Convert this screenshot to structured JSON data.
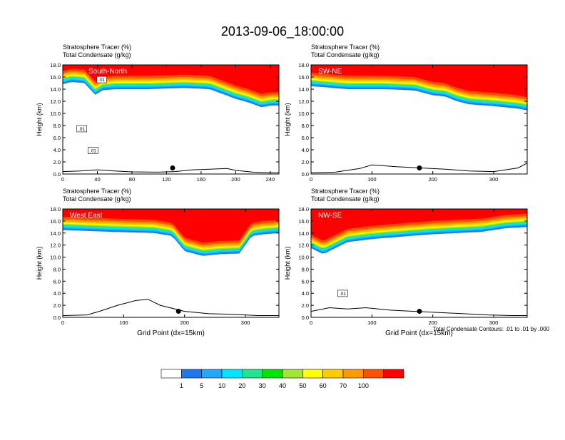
{
  "title": "2013-09-06_18:00:00",
  "colors": {
    "levels": [
      "#ffffff",
      "#1e78f0",
      "#1ea8ff",
      "#00e6ff",
      "#1ee68c",
      "#00e600",
      "#a0e632",
      "#ffff00",
      "#ffcc00",
      "#ff9900",
      "#ff5000",
      "#ff0000"
    ],
    "contour": "#000000"
  },
  "colorbar": {
    "labels": [
      "1",
      "5",
      "10",
      "20",
      "30",
      "40",
      "50",
      "60",
      "70",
      "100"
    ]
  },
  "contour_note": "Total Condensate Contours: .01 to .01 by .000",
  "chart_data": [
    {
      "type": "heatmap",
      "name": "South-North",
      "label": "South-North",
      "header1": "Stratosphere Tracer   (%)",
      "header2": "Total Condensate   (g/kg)",
      "ylabel": "Height (km)",
      "xlabel": "",
      "xlim": [
        0,
        250
      ],
      "ylim": [
        0,
        18
      ],
      "xticks": [
        0,
        40,
        80,
        120,
        160,
        200,
        240
      ],
      "yticks": [
        0,
        2,
        4,
        6,
        8,
        10,
        12,
        14,
        16,
        18
      ],
      "contour_labels": [
        {
          "text": ".01",
          "x": 22,
          "y": 7.3
        },
        {
          "text": ".01",
          "x": 35,
          "y": 3.7
        },
        {
          "text": ".01",
          "x": 45,
          "y": 15.4
        }
      ],
      "marker": {
        "x": 127,
        "y": 1.0
      },
      "tropopause": [
        [
          0,
          14.8
        ],
        [
          10,
          15.2
        ],
        [
          25,
          15.0
        ],
        [
          38,
          13.0
        ],
        [
          45,
          13.8
        ],
        [
          60,
          14.0
        ],
        [
          100,
          14.0
        ],
        [
          140,
          14.2
        ],
        [
          170,
          14.0
        ],
        [
          185,
          13.2
        ],
        [
          200,
          12.4
        ],
        [
          215,
          11.8
        ],
        [
          230,
          11.0
        ],
        [
          240,
          11.3
        ],
        [
          250,
          11.3
        ]
      ],
      "terrain": [
        [
          0,
          0.4
        ],
        [
          20,
          0.5
        ],
        [
          40,
          0.7
        ],
        [
          60,
          0.5
        ],
        [
          80,
          0.35
        ],
        [
          110,
          0.3
        ],
        [
          130,
          0.4
        ],
        [
          150,
          0.7
        ],
        [
          170,
          0.8
        ],
        [
          190,
          0.9
        ],
        [
          200,
          0.6
        ],
        [
          220,
          0.3
        ],
        [
          240,
          0.2
        ],
        [
          250,
          0.2
        ]
      ]
    },
    {
      "type": "heatmap",
      "name": "SW-NE",
      "label": "SW-NE",
      "header1": "Stratosphere Tracer   (%)",
      "header2": "Total Condensate   (g/kg)",
      "ylabel": "Height (km)",
      "xlabel": "",
      "xlim": [
        0,
        355
      ],
      "ylim": [
        0,
        18
      ],
      "xticks": [
        0,
        100,
        200,
        300
      ],
      "yticks": [
        0,
        2,
        4,
        6,
        8,
        10,
        12,
        14,
        16,
        18
      ],
      "contour_labels": [],
      "marker": {
        "x": 178,
        "y": 1.0
      },
      "tropopause": [
        [
          0,
          14.5
        ],
        [
          60,
          14.0
        ],
        [
          120,
          14.0
        ],
        [
          170,
          13.8
        ],
        [
          200,
          13.0
        ],
        [
          220,
          12.8
        ],
        [
          240,
          12.0
        ],
        [
          260,
          11.5
        ],
        [
          300,
          11.2
        ],
        [
          340,
          10.8
        ],
        [
          355,
          10.5
        ]
      ],
      "terrain": [
        [
          0,
          0.2
        ],
        [
          40,
          0.3
        ],
        [
          80,
          0.9
        ],
        [
          100,
          1.5
        ],
        [
          140,
          1.2
        ],
        [
          180,
          1.0
        ],
        [
          220,
          0.8
        ],
        [
          260,
          0.5
        ],
        [
          300,
          0.4
        ],
        [
          340,
          1.0
        ],
        [
          355,
          1.8
        ]
      ]
    },
    {
      "type": "heatmap",
      "name": "West East",
      "label": "West East",
      "header1": "Stratosphere Tracer   (%)",
      "header2": "Total Condensate   (g/kg)",
      "ylabel": "Height (km)",
      "xlabel": "Grid Point (dx=15km)",
      "xlim": [
        0,
        355
      ],
      "ylim": [
        0,
        18
      ],
      "xticks": [
        0,
        100,
        200,
        300
      ],
      "yticks": [
        0,
        2,
        4,
        6,
        8,
        10,
        12,
        14,
        16,
        18
      ],
      "contour_labels": [],
      "marker": {
        "x": 190,
        "y": 1.0
      },
      "tropopause": [
        [
          0,
          14.5
        ],
        [
          80,
          14.2
        ],
        [
          150,
          14.0
        ],
        [
          180,
          13.5
        ],
        [
          200,
          11.0
        ],
        [
          230,
          10.2
        ],
        [
          260,
          10.5
        ],
        [
          290,
          10.6
        ],
        [
          310,
          13.5
        ],
        [
          330,
          13.8
        ],
        [
          355,
          14.0
        ]
      ],
      "terrain": [
        [
          0,
          0.3
        ],
        [
          40,
          0.4
        ],
        [
          60,
          1.0
        ],
        [
          90,
          2.0
        ],
        [
          120,
          2.8
        ],
        [
          140,
          3.0
        ],
        [
          160,
          2.0
        ],
        [
          200,
          1.0
        ],
        [
          240,
          0.6
        ],
        [
          280,
          0.5
        ],
        [
          320,
          0.3
        ],
        [
          355,
          0.3
        ]
      ]
    },
    {
      "type": "heatmap",
      "name": "NW-SE",
      "label": "NW-SE",
      "header1": "Stratosphere Tracer   (%)",
      "header2": "Total Condensate   (g/kg)",
      "ylabel": "Height (km)",
      "xlabel": "Grid Point (dx=15km)",
      "xlim": [
        0,
        355
      ],
      "ylim": [
        0,
        18
      ],
      "xticks": [
        0,
        100,
        200,
        300
      ],
      "yticks": [
        0,
        2,
        4,
        6,
        8,
        10,
        12,
        14,
        16,
        18
      ],
      "contour_labels": [
        {
          "text": ".01",
          "x": 52,
          "y": 3.8
        }
      ],
      "marker": {
        "x": 178,
        "y": 1.0
      },
      "tropopause": [
        [
          0,
          11.5
        ],
        [
          20,
          10.5
        ],
        [
          40,
          11.5
        ],
        [
          60,
          12.5
        ],
        [
          100,
          13.0
        ],
        [
          160,
          13.5
        ],
        [
          200,
          13.8
        ],
        [
          240,
          14.0
        ],
        [
          280,
          14.2
        ],
        [
          320,
          14.8
        ],
        [
          355,
          15.0
        ]
      ],
      "terrain": [
        [
          0,
          1.0
        ],
        [
          30,
          1.6
        ],
        [
          60,
          1.4
        ],
        [
          90,
          1.6
        ],
        [
          130,
          1.2
        ],
        [
          170,
          1.0
        ],
        [
          210,
          0.8
        ],
        [
          250,
          0.6
        ],
        [
          290,
          0.4
        ],
        [
          330,
          0.3
        ],
        [
          355,
          0.3
        ]
      ]
    }
  ]
}
